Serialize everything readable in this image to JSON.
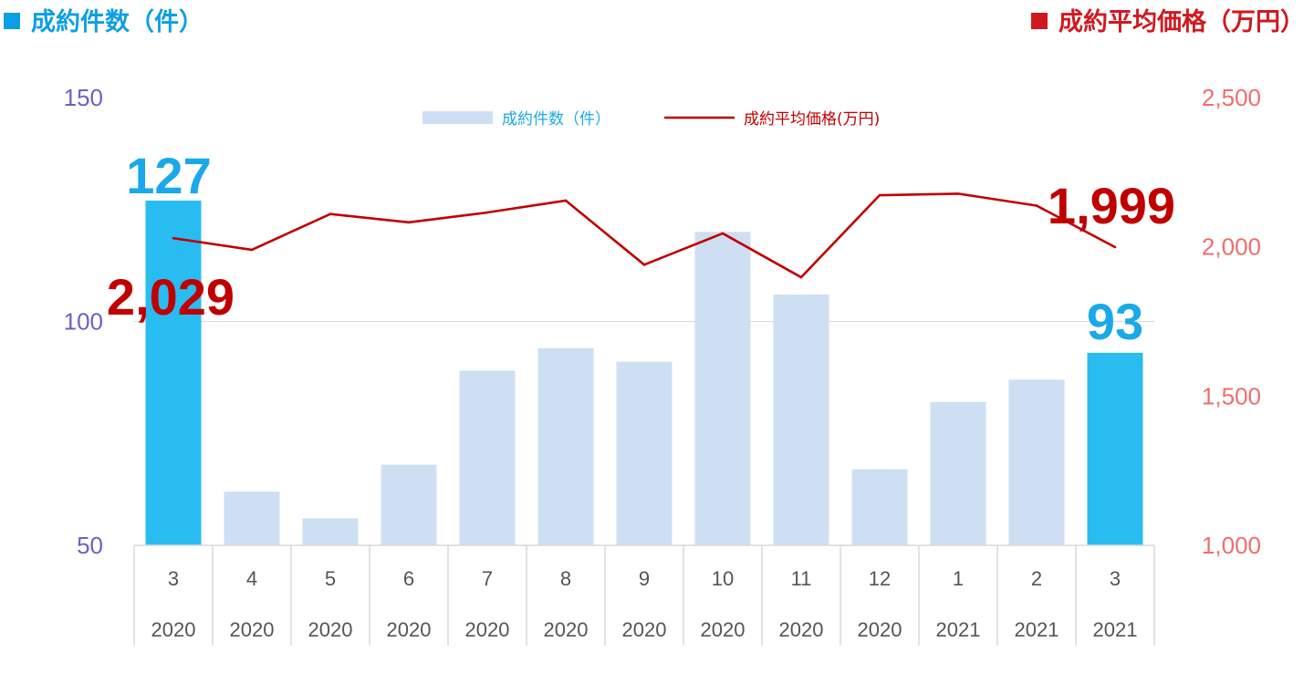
{
  "header": {
    "left_title": "成約件数（件）",
    "right_title": "成約平均価格（万円）"
  },
  "colors": {
    "bar_light": "#cfdff3",
    "bar_highlight": "#29bcf0",
    "line": "#c00000",
    "left_axis": "#6a63c0",
    "right_axis": "#f06e6e",
    "count_callout": "#1aa9e8",
    "price_callout": "#c00000",
    "gridline": "#d9d9d9"
  },
  "chart_data": {
    "type": "bar",
    "categories": [
      "3",
      "4",
      "5",
      "6",
      "7",
      "8",
      "9",
      "10",
      "11",
      "12",
      "1",
      "2",
      "3"
    ],
    "years": [
      "2020",
      "2020",
      "2020",
      "2020",
      "2020",
      "2020",
      "2020",
      "2020",
      "2020",
      "2020",
      "2021",
      "2021",
      "2021"
    ],
    "series": [
      {
        "name": "成約件数（件）",
        "type": "bar",
        "axis": "left",
        "values": [
          127,
          62,
          56,
          68,
          89,
          94,
          91,
          120,
          106,
          67,
          82,
          87,
          93
        ],
        "highlight": [
          0,
          12
        ]
      },
      {
        "name": "成約平均価格(万円)",
        "type": "line",
        "axis": "right",
        "values": [
          2029,
          1990,
          2110,
          2082,
          2115,
          2155,
          1940,
          2045,
          1898,
          2173,
          2178,
          2138,
          1999
        ]
      }
    ],
    "y_left": {
      "min": 50,
      "max": 150,
      "ticks": [
        "50",
        "100",
        "150"
      ]
    },
    "y_right": {
      "min": 1000,
      "max": 2500,
      "ticks": [
        "1,000",
        "1,500",
        "2,000",
        "2,500"
      ]
    },
    "legend_position": "top-center",
    "callouts": {
      "first_count": "127",
      "last_count": "93",
      "first_price": "2,029",
      "last_price": "1,999"
    }
  }
}
